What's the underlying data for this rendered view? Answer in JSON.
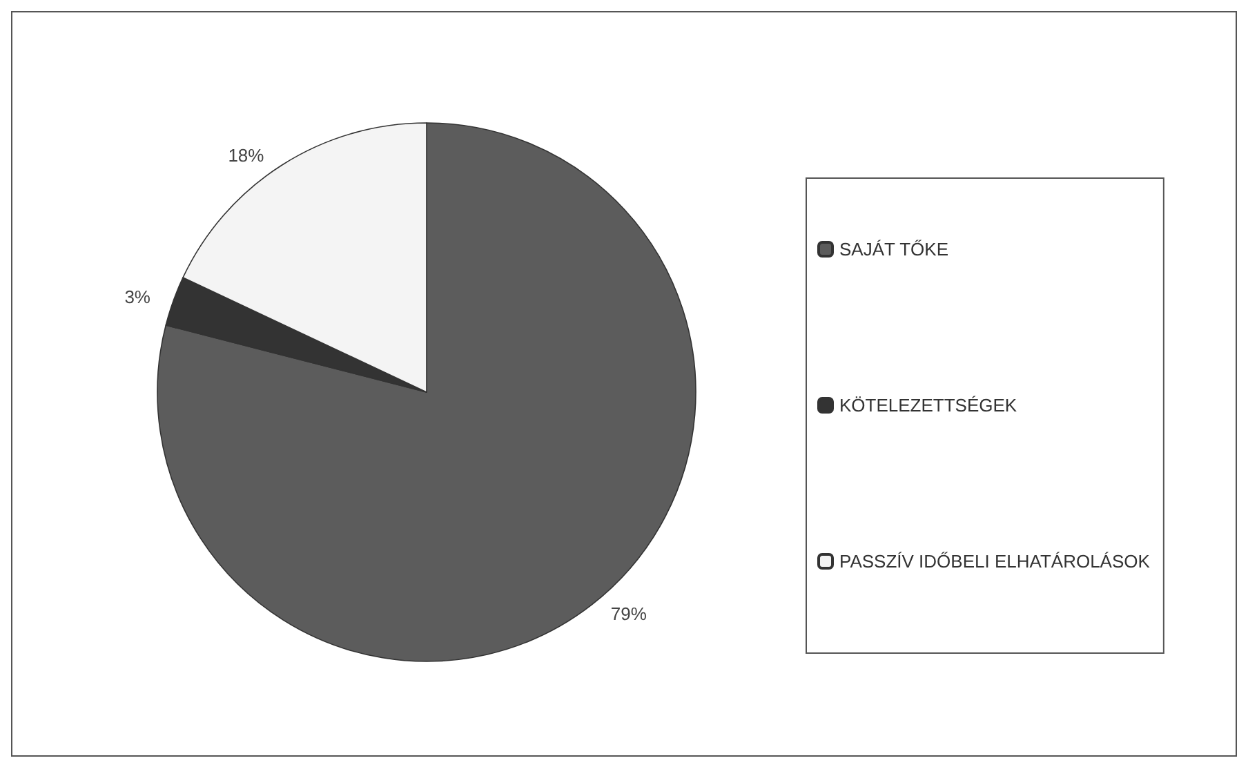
{
  "chart_data": {
    "type": "pie",
    "categories": [
      "SAJÁT TŐKE",
      "KÖTELEZETTSÉGEK",
      "PASSZÍV IDŐBELI ELHATÁROLÁSOK"
    ],
    "values": [
      79,
      3,
      18
    ],
    "value_labels": [
      "79%",
      "3%",
      "18%"
    ],
    "colors": [
      "#5c5c5c",
      "#333333",
      "#f4f4f4"
    ],
    "legend": "right"
  }
}
